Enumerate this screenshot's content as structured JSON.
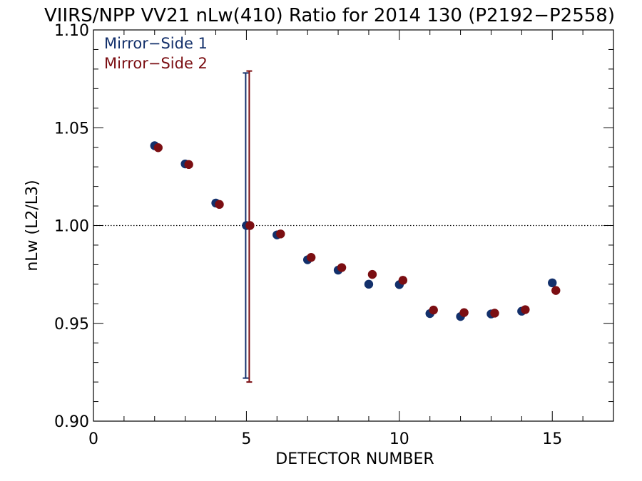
{
  "chart_data": {
    "type": "scatter",
    "title": "VIIRS/NPP VV21 nLw(410) Ratio for 2014 130 (P2192−P2558)",
    "xlabel": "DETECTOR NUMBER",
    "ylabel": "nLw (L2/L3)",
    "xlim": [
      0,
      17
    ],
    "ylim": [
      0.9,
      1.1
    ],
    "x_ticks": [
      0,
      5,
      10,
      15
    ],
    "x_tick_labels": [
      "0",
      "5",
      "10",
      "15"
    ],
    "y_ticks": [
      0.9,
      0.95,
      1.0,
      1.05,
      1.1
    ],
    "y_tick_labels": [
      "0.90",
      "0.95",
      "1.00",
      "1.05",
      "1.10"
    ],
    "reference_line": 1.0,
    "legend_position": "top-left",
    "series": [
      {
        "name": "Mirror−Side 1",
        "color": "#13306b",
        "x": [
          2,
          3,
          4,
          5,
          6,
          7,
          8,
          9,
          10,
          11,
          12,
          13,
          14,
          15
        ],
        "y": [
          1.0408,
          1.0315,
          1.0115,
          1.0,
          0.9952,
          0.9825,
          0.9772,
          0.97,
          0.9698,
          0.955,
          0.9535,
          0.9548,
          0.9562,
          0.9707
        ],
        "error_bar": {
          "x": 5,
          "low": 0.922,
          "high": 1.078
        }
      },
      {
        "name": "Mirror−Side 2",
        "color": "#7b0e12",
        "x": [
          2,
          3,
          4,
          5,
          6,
          7,
          8,
          9,
          10,
          11,
          12,
          13,
          14,
          15
        ],
        "y": [
          1.0398,
          1.0312,
          1.0108,
          1.0,
          0.9957,
          0.9837,
          0.9785,
          0.975,
          0.972,
          0.9568,
          0.9555,
          0.9552,
          0.957,
          0.9668
        ],
        "error_bar": {
          "x": 5,
          "low": 0.92,
          "high": 1.079
        }
      }
    ]
  }
}
